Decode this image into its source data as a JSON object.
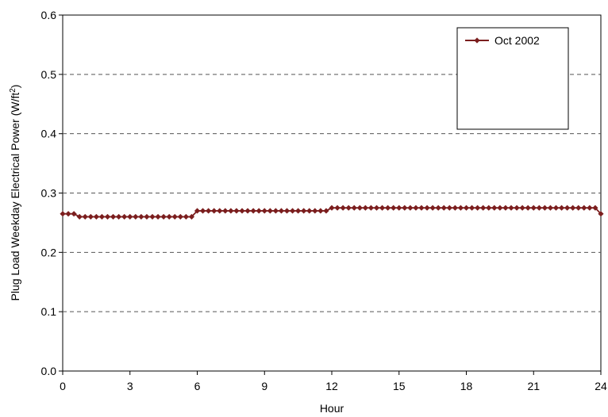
{
  "chart_data": {
    "type": "line",
    "title": "",
    "xlabel": "Hour",
    "ylabel": "Plug Load Weekday Electrical Power (W/ft",
    "ylabel_superscript": "2",
    "ylabel_suffix": ")",
    "xlim": [
      0,
      24
    ],
    "ylim": [
      0,
      0.6
    ],
    "x_ticks": [
      "0",
      "3",
      "6",
      "9",
      "12",
      "15",
      "18",
      "21",
      "24"
    ],
    "y_ticks": [
      "0.0",
      "0.1",
      "0.2",
      "0.3",
      "0.4",
      "0.5",
      "0.6"
    ],
    "grid": "horizontal dashed",
    "legend_position": "top-right",
    "x_step_hours": 0.25,
    "series": [
      {
        "name": "Oct 2002",
        "color": "#7b1e1e",
        "marker": "diamond",
        "values": [
          0.265,
          0.265,
          0.265,
          0.26,
          0.26,
          0.26,
          0.26,
          0.26,
          0.26,
          0.26,
          0.26,
          0.26,
          0.26,
          0.26,
          0.26,
          0.26,
          0.26,
          0.26,
          0.26,
          0.26,
          0.26,
          0.26,
          0.26,
          0.26,
          0.27,
          0.27,
          0.27,
          0.27,
          0.27,
          0.27,
          0.27,
          0.27,
          0.27,
          0.27,
          0.27,
          0.27,
          0.27,
          0.27,
          0.27,
          0.27,
          0.27,
          0.27,
          0.27,
          0.27,
          0.27,
          0.27,
          0.27,
          0.27,
          0.275,
          0.275,
          0.275,
          0.275,
          0.275,
          0.275,
          0.275,
          0.275,
          0.275,
          0.275,
          0.275,
          0.275,
          0.275,
          0.275,
          0.275,
          0.275,
          0.275,
          0.275,
          0.275,
          0.275,
          0.275,
          0.275,
          0.275,
          0.275,
          0.275,
          0.275,
          0.275,
          0.275,
          0.275,
          0.275,
          0.275,
          0.275,
          0.275,
          0.275,
          0.275,
          0.275,
          0.275,
          0.275,
          0.275,
          0.275,
          0.275,
          0.275,
          0.275,
          0.275,
          0.275,
          0.275,
          0.275,
          0.275,
          0.265
        ]
      }
    ]
  }
}
